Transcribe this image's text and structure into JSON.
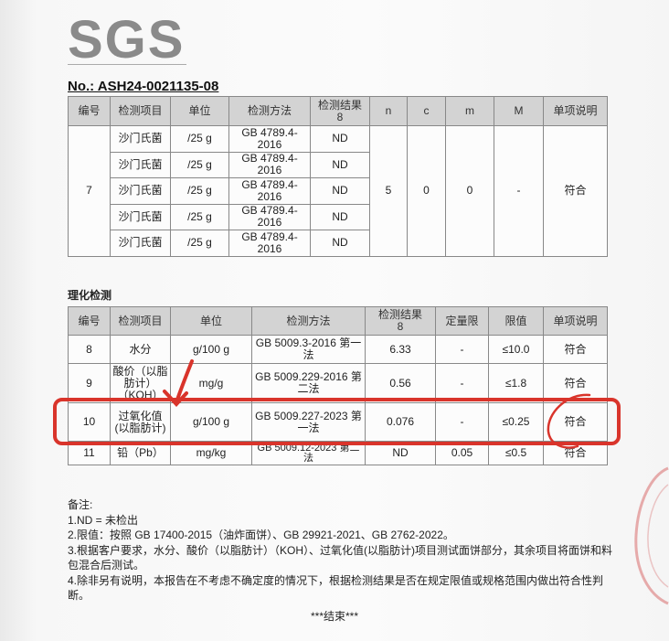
{
  "logo": "SGS",
  "doc_no": "No.: ASH24-0021135-08",
  "table1": {
    "headers": [
      "编号",
      "检测项目",
      "单位",
      "检测方法",
      "检测结果\n8",
      "n",
      "c",
      "m",
      "M",
      "单项说明"
    ],
    "no": "7",
    "rows": [
      {
        "item": "沙门氏菌",
        "unit": "/25 g",
        "method": "GB 4789.4-2016",
        "result": "ND"
      },
      {
        "item": "沙门氏菌",
        "unit": "/25 g",
        "method": "GB 4789.4-2016",
        "result": "ND"
      },
      {
        "item": "沙门氏菌",
        "unit": "/25 g",
        "method": "GB 4789.4-2016",
        "result": "ND"
      },
      {
        "item": "沙门氏菌",
        "unit": "/25 g",
        "method": "GB 4789.4-2016",
        "result": "ND"
      },
      {
        "item": "沙门氏菌",
        "unit": "/25 g",
        "method": "GB 4789.4-2016",
        "result": "ND"
      }
    ],
    "n": "5",
    "c": "0",
    "m": "0",
    "M": "-",
    "verdict": "符合"
  },
  "section2_title": "理化检测",
  "table2": {
    "headers": [
      "编号",
      "检测项目",
      "单位",
      "检测方法",
      "检测结果\n8",
      "定量限",
      "限值",
      "单项说明"
    ],
    "rows": [
      {
        "no": "8",
        "item": "水分",
        "unit": "g/100 g",
        "method": "GB 5009.3-2016 第一法",
        "result": "6.33",
        "loq": "-",
        "limit": "≤10.0",
        "verdict": "符合"
      },
      {
        "no": "9",
        "item": "酸价（以脂肪计）（KOH）",
        "unit": "mg/g",
        "method": "GB 5009.229-2016 第二法",
        "result": "0.56",
        "loq": "-",
        "limit": "≤1.8",
        "verdict": "符合"
      },
      {
        "no": "10",
        "item": "过氧化值(以脂肪计)",
        "unit": "g/100 g",
        "method": "GB 5009.227-2023 第一法",
        "result": "0.076",
        "loq": "-",
        "limit": "≤0.25",
        "verdict": "符合"
      },
      {
        "no": "11",
        "item": "铅（Pb）",
        "unit": "mg/kg",
        "method": "GB 5009.12-2023 第二法",
        "result": "ND",
        "loq": "0.05",
        "limit": "≤0.5",
        "verdict": "符合"
      }
    ]
  },
  "notes": {
    "title": "备注:",
    "items": [
      "1.ND = 未检出",
      "2.限值：按照 GB 17400-2015（油炸面饼）、GB 29921-2021、GB 2762-2022。",
      "3.根据客户要求，水分、酸价（以脂肪计）（KOH）、过氧化值(以脂肪计)项目测试面饼部分，其余项目将面饼和料包混合后测试。",
      "4.除非另有说明，本报告在不考虑不确定度的情况下，根据检测结果是否在规定限值或规格范围内做出符合性判断。"
    ]
  },
  "end": "***结束***",
  "annotation_color": "#d9342b"
}
